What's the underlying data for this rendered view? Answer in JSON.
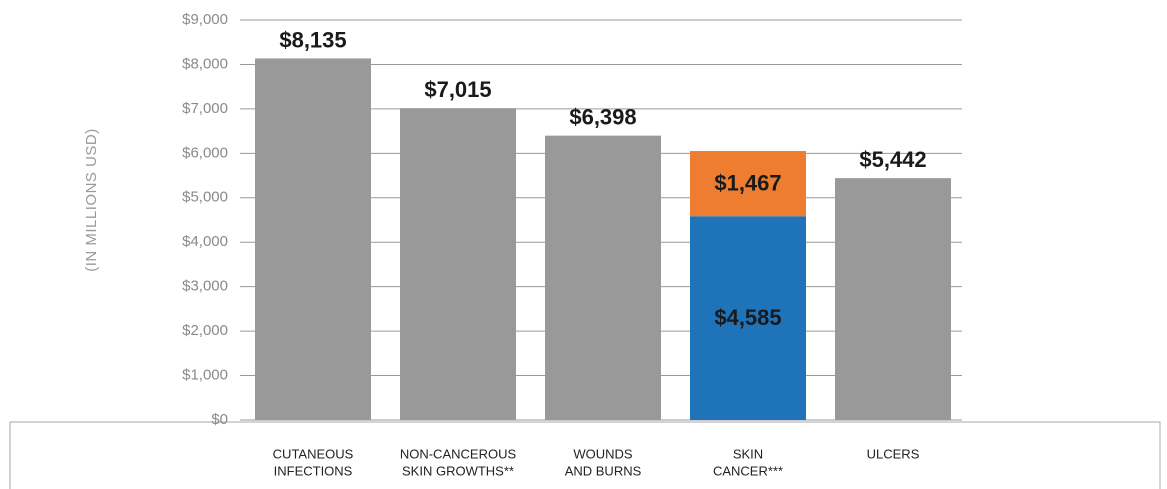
{
  "chart_data": {
    "type": "stacked_bar",
    "y_label": "(IN MILLIONS USD)",
    "categories": [
      [
        "CUTANEOUS",
        "INFECTIONS"
      ],
      [
        "NON-CANCEROUS",
        "SKIN GROWTHS**"
      ],
      [
        "WOUNDS",
        "AND BURNS"
      ],
      [
        "SKIN",
        "CANCER***"
      ],
      [
        "ULCERS"
      ]
    ],
    "series": [
      {
        "color": "#999999",
        "values": [
          8135,
          7015,
          6398,
          null,
          5442
        ],
        "value_labels": [
          "$8,135",
          "$7,015",
          "$6,398",
          null,
          "$5,442"
        ]
      },
      {
        "color": "#1f73b9",
        "values": [
          null,
          null,
          null,
          4585,
          null
        ],
        "value_labels": [
          null,
          null,
          null,
          "$4,585",
          null
        ]
      },
      {
        "color": "#ee7d31",
        "values": [
          null,
          null,
          null,
          1467,
          null
        ],
        "value_labels": [
          null,
          null,
          null,
          "$1,467",
          null
        ]
      }
    ],
    "ylim": [
      0,
      9000
    ],
    "yticks": [
      {
        "value": 0,
        "label": "$0"
      },
      {
        "value": 1000,
        "label": "$1,000"
      },
      {
        "value": 2000,
        "label": "$2,000"
      },
      {
        "value": 3000,
        "label": "$3,000"
      },
      {
        "value": 4000,
        "label": "$4,000"
      },
      {
        "value": 5000,
        "label": "$5,000"
      },
      {
        "value": 6000,
        "label": "$6,000"
      },
      {
        "value": 7000,
        "label": "$7,000"
      },
      {
        "value": 8000,
        "label": "$8,000"
      },
      {
        "value": 9000,
        "label": "$9,000"
      }
    ],
    "grid": true
  }
}
